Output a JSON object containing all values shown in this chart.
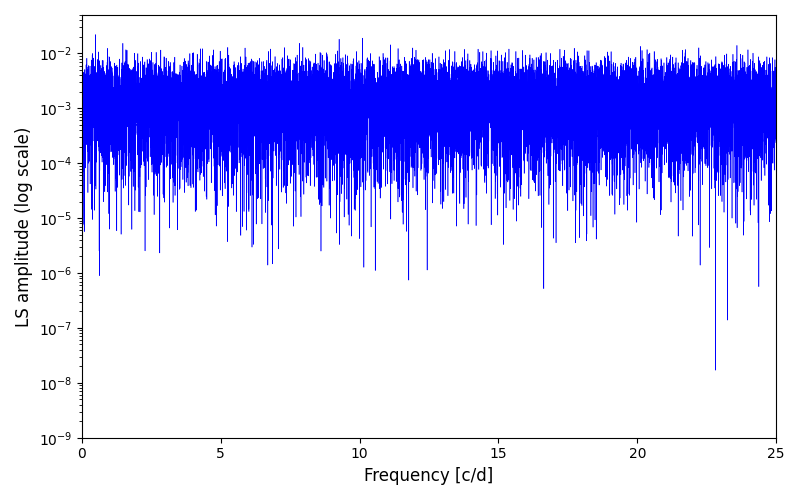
{
  "xlabel": "Frequency [c/d]",
  "ylabel": "LS amplitude (log scale)",
  "xlim": [
    0,
    25
  ],
  "ylim": [
    1e-09,
    0.05
  ],
  "line_color": "#0000ff",
  "line_width": 0.4,
  "background_color": "#ffffff",
  "seed": 42,
  "n_points": 15000,
  "freq_max": 25.0,
  "figsize": [
    8.0,
    5.0
  ],
  "dpi": 100
}
